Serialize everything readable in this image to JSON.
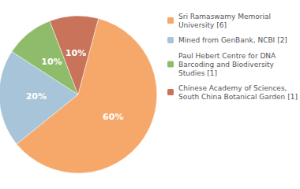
{
  "chart_data": {
    "type": "pie",
    "categories": [
      "Sri Ramaswamy Memorial\nUniversity [6]",
      "Mined from GenBank, NCBI [2]",
      "Paul Hebert Centre for DNA\nBarcoding and Biodiversity\nStudies [1]",
      "Chinese Academy of Sciences,\nSouth China Botanical Garden [1]"
    ],
    "values": [
      60,
      20,
      10,
      10
    ],
    "value_labels": [
      "60%",
      "20%",
      "10%",
      "10%"
    ],
    "colors": [
      "#F5A86A",
      "#A8C4D8",
      "#8FBC6A",
      "#C8735A"
    ],
    "data_labels": true,
    "legend": "right"
  }
}
